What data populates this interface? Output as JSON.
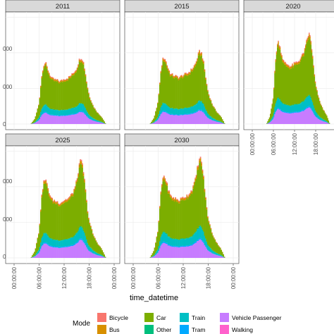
{
  "chart_data": {
    "type": "area",
    "subtype": "stacked-bar-histogram",
    "facets": [
      "2011",
      "2015",
      "2020",
      "2025",
      "2030"
    ],
    "facet_layout": "3 columns x 2 rows",
    "xlabel": "time_datetime",
    "ylabel": "",
    "x_ticks": [
      "00:00:00",
      "06:00:00",
      "12:00:00",
      "18:00:00",
      "00:00:00"
    ],
    "y_tick_labels_visible": [
      "000",
      "000",
      "000",
      "0"
    ],
    "grid": true,
    "legend_position": "bottom",
    "legend_title": "Mode",
    "modes": [
      {
        "name": "Bicycle",
        "color": "#F8766D"
      },
      {
        "name": "Bus",
        "color": "#D89000"
      },
      {
        "name": "Car",
        "color": "#7CAE00"
      },
      {
        "name": "Other",
        "color": "#00BF7D"
      },
      {
        "name": "Train",
        "color": "#00BFC4"
      },
      {
        "name": "Tram",
        "color": "#00A9FF"
      },
      {
        "name": "Vehicle Passenger",
        "color": "#C77CFF"
      },
      {
        "name": "Walking",
        "color": "#FF61CC"
      }
    ],
    "y_range_relative": [
      0,
      1.15
    ],
    "profile_hours": [
      4,
      5,
      6,
      6.5,
      7,
      7.5,
      8,
      8.5,
      9,
      10,
      11,
      12,
      13,
      14,
      15,
      15.5,
      16,
      16.5,
      17,
      17.5,
      18,
      19,
      20,
      21,
      22
    ],
    "profile_relative_total": [
      0.0,
      0.08,
      0.3,
      0.62,
      0.82,
      0.86,
      0.78,
      0.7,
      0.64,
      0.62,
      0.6,
      0.63,
      0.65,
      0.7,
      0.78,
      0.88,
      0.94,
      0.9,
      0.75,
      0.55,
      0.4,
      0.25,
      0.16,
      0.1,
      0.0
    ],
    "facet_scale": {
      "2011": 0.78,
      "2015": 0.85,
      "2020": 1.05,
      "2025": 1.0,
      "2030": 1.05
    },
    "facet_peak_shift": {
      "2011": 0.0,
      "2015": 0.0,
      "2020": 0.0,
      "2025": 0.12,
      "2030": 0.1
    },
    "mode_shares": {
      "Vehicle Passenger": 0.18,
      "Tram": 0.015,
      "Train": 0.11,
      "Other": 0.01,
      "Car": 0.62,
      "Bus": 0.03,
      "Bicycle": 0.015,
      "Walking": 0.0
    }
  }
}
